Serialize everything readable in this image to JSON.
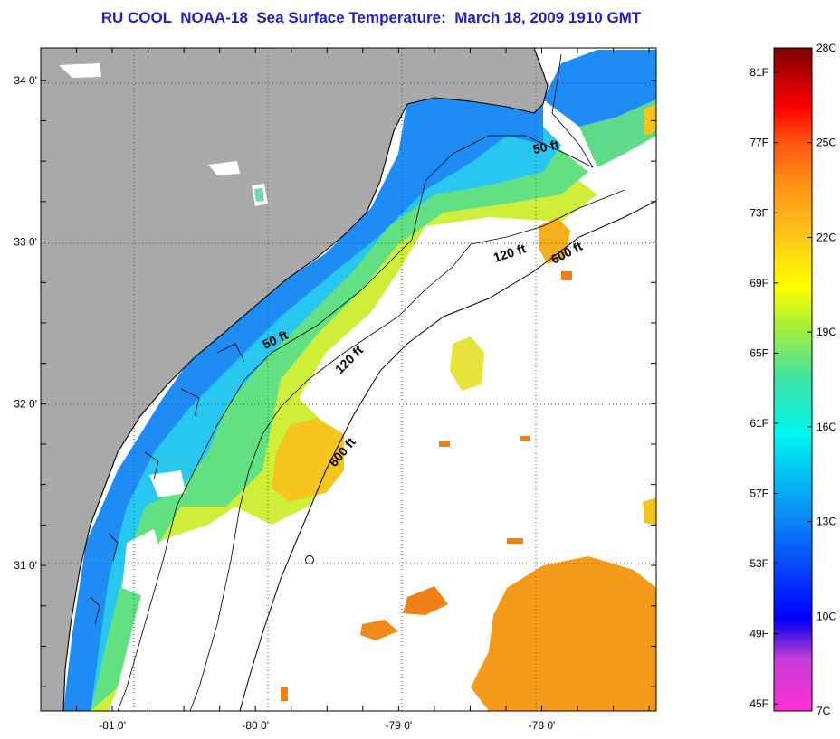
{
  "title": "RU COOL  NOAA-18  Sea Surface Temperature:  March 18, 2009 1910 GMT",
  "colors": {
    "title": "#1f1fbf",
    "land": "#a9a9a9",
    "no_data": "#ffffff",
    "coastline": "#000000"
  },
  "map": {
    "lon_range": [
      -81.5,
      -77.2
    ],
    "lat_range": [
      30.1,
      34.2
    ],
    "x_ticks": [
      {
        "value": -81,
        "label": "-81 0'"
      },
      {
        "value": -80,
        "label": "-80 0'"
      },
      {
        "value": -79,
        "label": "-79 0'"
      },
      {
        "value": -78,
        "label": "-78 0'"
      }
    ],
    "y_ticks": [
      {
        "value": 31,
        "label": "31 0'"
      },
      {
        "value": 32,
        "label": "32 0'"
      },
      {
        "value": 33,
        "label": "33 0'"
      },
      {
        "value": 34,
        "label": "34 0'"
      }
    ],
    "gridlines": "dotted",
    "isobath_labels": [
      "50 ft",
      "50 ft",
      "120 ft",
      "120 ft",
      "600 ft",
      "600 ft"
    ]
  },
  "colorbar": {
    "range_c": [
      7,
      28
    ],
    "fahrenheit_labels": [
      "81F",
      "77F",
      "73F",
      "69F",
      "65F",
      "61F",
      "57F",
      "53F",
      "49F",
      "45F"
    ],
    "celsius_labels": [
      "28C",
      "25C",
      "22C",
      "19C",
      "16C",
      "13C",
      "10C",
      "7C"
    ]
  }
}
